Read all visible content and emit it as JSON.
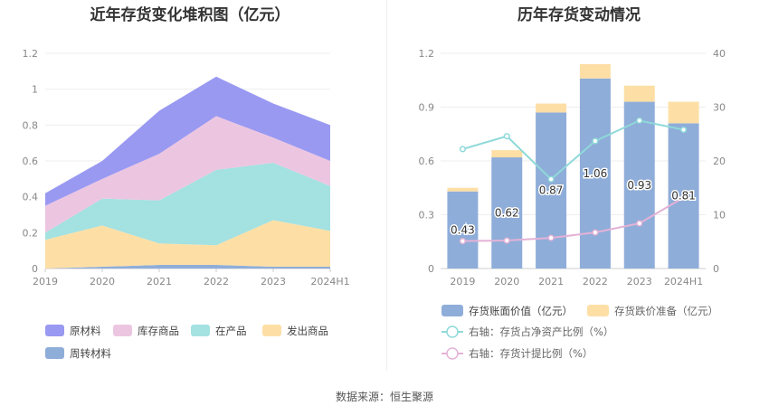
{
  "source_label": "数据来源：恒生聚源",
  "chart_data": [
    {
      "type": "area",
      "stacked": true,
      "title": "近年存货变化堆积图（亿元）",
      "categories": [
        "2019",
        "2020",
        "2021",
        "2022",
        "2023",
        "2024H1"
      ],
      "yticks": [
        "0",
        "0.2",
        "0.4",
        "0.6",
        "0.8",
        "1",
        "1.2"
      ],
      "ylim": [
        0,
        1.2
      ],
      "series": [
        {
          "name": "周转材料",
          "color": "#8fadd9",
          "values": [
            0.0,
            0.01,
            0.02,
            0.02,
            0.01,
            0.01
          ]
        },
        {
          "name": "发出商品",
          "color": "#fddfa6",
          "values": [
            0.16,
            0.23,
            0.12,
            0.11,
            0.26,
            0.2
          ]
        },
        {
          "name": "在产品",
          "color": "#a4e1e1",
          "values": [
            0.04,
            0.15,
            0.24,
            0.42,
            0.32,
            0.25
          ]
        },
        {
          "name": "库存商品",
          "color": "#ecc6e1",
          "values": [
            0.15,
            0.11,
            0.26,
            0.3,
            0.14,
            0.14
          ]
        },
        {
          "name": "原材料",
          "color": "#9999f2",
          "values": [
            0.07,
            0.1,
            0.24,
            0.22,
            0.19,
            0.2
          ]
        }
      ],
      "legend_order": [
        "原材料",
        "库存商品",
        "在产品",
        "发出商品",
        "周转材料"
      ],
      "legend_placement": "bottom",
      "grid": true
    },
    {
      "type": "bar",
      "title": "历年存货变动情况",
      "categories": [
        "2019",
        "2020",
        "2021",
        "2022",
        "2023",
        "2024H1"
      ],
      "yticks_left": [
        "0",
        "0.3",
        "0.6",
        "0.9",
        "1.2"
      ],
      "ylim_left": [
        0,
        1.2
      ],
      "yticks_right": [
        "0",
        "10",
        "20",
        "30",
        "40"
      ],
      "ylim_right": [
        0,
        40
      ],
      "stacked_bars": [
        {
          "name": "存货账面价值（亿元）",
          "color": "#8fadd9",
          "values": [
            0.43,
            0.62,
            0.87,
            1.06,
            0.93,
            0.81
          ],
          "labels": [
            "0.43",
            "0.62",
            "0.87",
            "1.06",
            "0.93",
            "0.81"
          ]
        },
        {
          "name": "存货跌价准备（亿元）",
          "color": "#fddfa6",
          "values": [
            0.02,
            0.04,
            0.05,
            0.08,
            0.09,
            0.12
          ]
        }
      ],
      "lines": [
        {
          "name": "右轴：存货占净资产比例（%）",
          "color": "#8fd9d9",
          "values": [
            22.2,
            24.6,
            16.6,
            23.7,
            27.5,
            25.8
          ]
        },
        {
          "name": "右轴：存货计提比例（%）",
          "color": "#e4b2d6",
          "values": [
            5.1,
            5.2,
            5.7,
            6.7,
            8.4,
            13.2
          ]
        }
      ],
      "legend_placement": "bottom",
      "grid": true
    }
  ]
}
